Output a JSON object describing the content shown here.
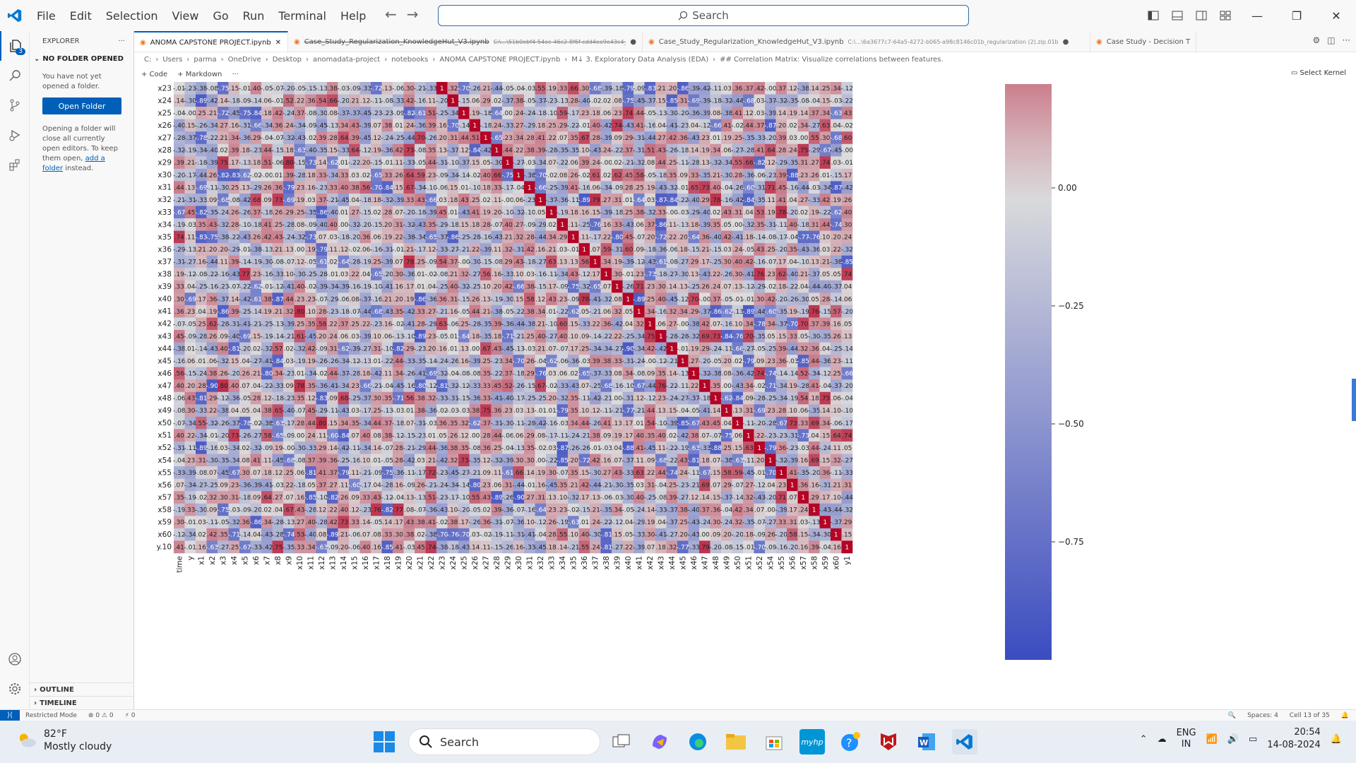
{
  "menu": [
    "File",
    "Edit",
    "Selection",
    "View",
    "Go",
    "Run",
    "Terminal",
    "Help"
  ],
  "search": {
    "label": "Search"
  },
  "sidebar": {
    "title": "EXPLORER",
    "section": "NO FOLDER OPENED",
    "text1": "You have not yet opened a folder.",
    "open_folder": "Open Folder",
    "text2": "Opening a folder will close all currently open editors. To keep them open, ",
    "link": "add a folder",
    "text3": " instead.",
    "outline": "OUTLINE",
    "timeline": "TIMELINE",
    "badge": "3"
  },
  "tabs": [
    {
      "name": "ANOMA CAPSTONE PROJECT.ipynb",
      "path": "",
      "active": true
    },
    {
      "name": "Case_Study_Regularization_KnowledgeHut_V3.ipynb",
      "path": "C:\\...\\51b0ebf4-54ec-46c2-8f6f-cdd4ee9e43c4_regularization (1).zip.3c4",
      "active": false
    },
    {
      "name": "Case_Study_Regularization_KnowledgeHut_V3.ipynb",
      "path": "C:\\...\\6a3677c7-64a5-4272-b065-a98c8146c01b_regularization (2).zip.01b",
      "active": false
    },
    {
      "name": "Case Study - Decision T",
      "path": "",
      "active": false
    }
  ],
  "breadcrumb": [
    "C:",
    "Users",
    "parma",
    "OneDrive",
    "Desktop",
    "anomadata-project",
    "notebooks",
    "ANOMA CAPSTONE PROJECT.ipynb",
    "M↓ 3. Exploratory Data Analysis (EDA)",
    "## Correlation Matrix: Visualize correlations between features."
  ],
  "toolbar": {
    "code": "+ Code",
    "markdown": "+ Markdown",
    "more": "···",
    "kernel": "Select Kernel"
  },
  "chart_data": {
    "type": "heatmap",
    "row_labels": [
      "x23",
      "x24",
      "x25",
      "x26",
      "x27",
      "x28",
      "x29",
      "x30",
      "x31",
      "x32",
      "x33",
      "x34",
      "x35",
      "x36",
      "x37",
      "x38",
      "x39",
      "x40",
      "x41",
      "x42",
      "x43",
      "x44",
      "x45",
      "x46",
      "x47",
      "x48",
      "x49",
      "x50",
      "x51",
      "x52",
      "x54",
      "x55",
      "x56",
      "x57",
      "x58",
      "x59",
      "x60",
      "y.1"
    ],
    "row_label_last": "y.10",
    "col_labels": [
      "time",
      "y",
      "x1",
      "x2",
      "x3",
      "x4",
      "x5",
      "x6",
      "x7",
      "x8",
      "x9",
      "x10",
      "x11",
      "x12",
      "x13",
      "x14",
      "x15",
      "x16",
      "x17",
      "x18",
      "x19",
      "x20",
      "x21",
      "x22",
      "x23",
      "x24",
      "x25",
      "x26",
      "x27",
      "x28",
      "x29",
      "x30",
      "x31",
      "x32",
      "x33",
      "x34",
      "x35",
      "x36",
      "x37",
      "x38",
      "x39",
      "x40",
      "x41",
      "x42",
      "x43",
      "x44",
      "x45",
      "x46",
      "x47",
      "x48",
      "x49",
      "x50",
      "x51",
      "x52",
      "x54",
      "x55",
      "x56",
      "x57",
      "x58",
      "x59",
      "x60",
      "y1"
    ],
    "colorbar_ticks": [
      0.0,
      -0.25,
      -0.5,
      -0.75
    ],
    "colorbar_range": [
      -1.0,
      0.22
    ],
    "colormap": "coolwarm",
    "note_cells": "annotated correlation values in each cell are overlapping and illegible"
  },
  "statusbar": {
    "restricted": "Restricted Mode",
    "problems": "⊗ 0 ⚠ 0",
    "ports": "⚡ 0",
    "spaces": "Spaces: 4",
    "cell": "Cell 13 of 35"
  },
  "taskbar": {
    "temp": "82°F",
    "weather": "Mostly cloudy",
    "search": "Search",
    "lang1": "ENG",
    "lang2": "IN",
    "time": "20:54",
    "date": "14-08-2024"
  }
}
